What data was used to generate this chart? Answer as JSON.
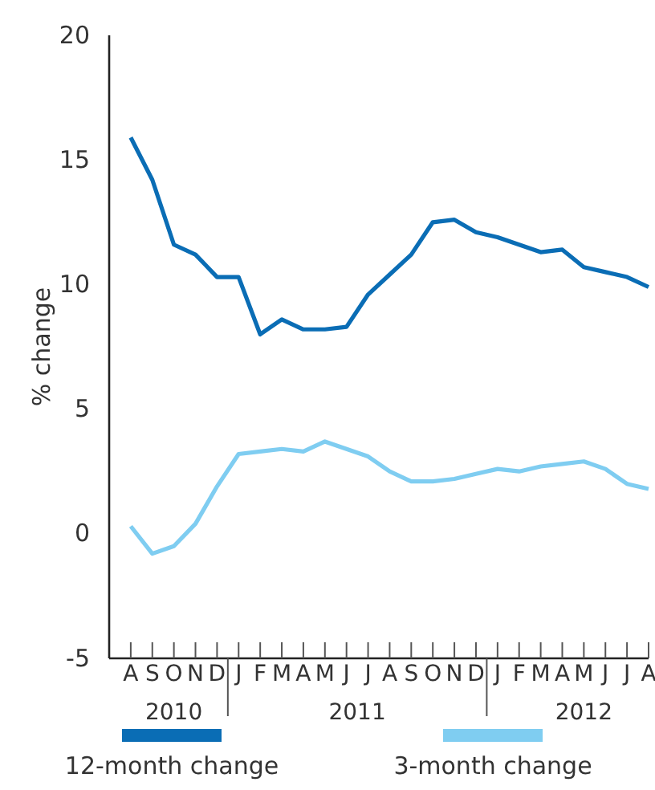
{
  "chart_data": {
    "type": "line",
    "ylabel": "% change",
    "categories": [
      "A",
      "S",
      "O",
      "N",
      "D",
      "J",
      "F",
      "M",
      "A",
      "M",
      "J",
      "J",
      "A",
      "S",
      "O",
      "N",
      "D",
      "J",
      "F",
      "M",
      "A",
      "M",
      "J",
      "J",
      "A"
    ],
    "series": [
      {
        "name": "12-month change",
        "color": "#0a6db5",
        "values": [
          15.9,
          14.2,
          11.6,
          11.2,
          10.3,
          10.3,
          8.0,
          8.6,
          8.2,
          8.2,
          8.3,
          9.6,
          10.4,
          11.2,
          12.5,
          12.6,
          12.1,
          11.9,
          11.6,
          11.3,
          11.4,
          10.7,
          10.5,
          10.3,
          9.9
        ]
      },
      {
        "name": "3-month change",
        "color": "#7fcdf1",
        "values": [
          0.3,
          -0.8,
          -0.5,
          0.4,
          1.9,
          3.2,
          3.3,
          3.4,
          3.3,
          3.7,
          3.4,
          3.1,
          2.5,
          2.1,
          2.1,
          2.2,
          2.4,
          2.6,
          2.5,
          2.7,
          2.8,
          2.9,
          2.6,
          2.0,
          1.8
        ]
      }
    ],
    "ylim": [
      -5,
      20
    ],
    "yticks": [
      -5,
      0,
      5,
      10,
      15,
      20
    ],
    "annotations": [
      "2010",
      "2011",
      "2012"
    ],
    "grid": false,
    "legend": "bottom",
    "line_style": "solid",
    "marker": "none"
  }
}
